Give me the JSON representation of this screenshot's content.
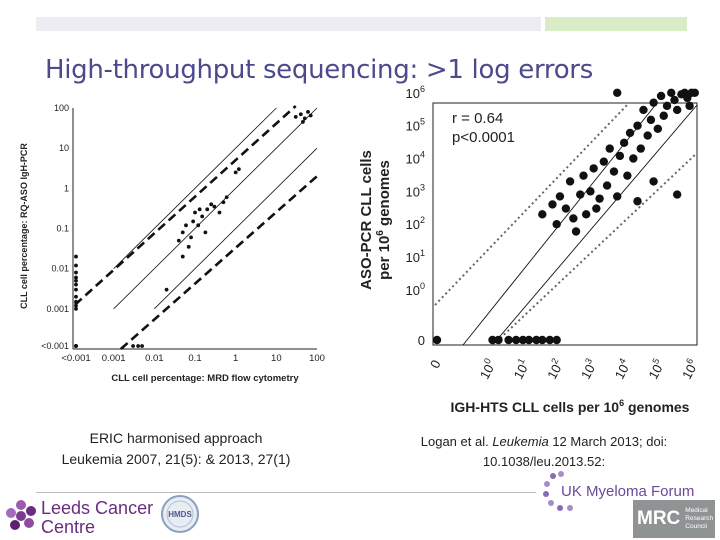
{
  "slide": {
    "title": "High-throughput sequencing: >1 log errors",
    "caption_left": [
      "ERIC harmonised approach",
      "Leukemia 2007, 21(5): & 2013, 27(1)"
    ],
    "caption_right": {
      "author": "Logan et al. ",
      "journal": "Leukemia",
      "date": " 12 March 2013; doi:",
      "doi": "10.1038/leu.2013.52:"
    }
  },
  "chart_data": [
    {
      "type": "scatter",
      "title": "",
      "xlabel": "CLL cell percentage: MRD flow cytometry",
      "ylabel": "CLL cell percentage: RQ-ASO IgH-PCR",
      "x_scale": "log",
      "y_scale": "log",
      "x_ticks": [
        "<0.001",
        "0.001",
        "0.01",
        "0.1",
        "1",
        "10",
        "100"
      ],
      "y_ticks": [
        "<0.001",
        "0.001",
        "0.01",
        "0.1",
        "1",
        "10",
        "100"
      ],
      "points": [
        [
          0.0005,
          0.012
        ],
        [
          0.0005,
          0.008
        ],
        [
          0.0005,
          0.005
        ],
        [
          0.0005,
          0.003
        ],
        [
          0.0005,
          0.002
        ],
        [
          0.0005,
          0.0015
        ],
        [
          0.0005,
          0.001
        ],
        [
          0.0005,
          0.0008
        ],
        [
          0.0005,
          0.0006
        ],
        [
          0.0005,
          0.02
        ],
        [
          0.0005,
          0.004
        ],
        [
          0.0005,
          0.0012
        ],
        [
          0.0004,
          0.0008
        ],
        [
          0.0004,
          0.006
        ],
        [
          0.0004,
          0.0004
        ],
        [
          0.003,
          0.0004
        ],
        [
          0.004,
          0.0004
        ],
        [
          0.005,
          0.0005
        ],
        [
          0.02,
          0.003
        ],
        [
          0.04,
          0.05
        ],
        [
          0.05,
          0.02
        ],
        [
          0.05,
          0.08
        ],
        [
          0.06,
          0.12
        ],
        [
          0.07,
          0.035
        ],
        [
          0.08,
          0.06
        ],
        [
          0.09,
          0.15
        ],
        [
          0.1,
          0.25
        ],
        [
          0.12,
          0.12
        ],
        [
          0.13,
          0.3
        ],
        [
          0.15,
          0.2
        ],
        [
          0.18,
          0.08
        ],
        [
          0.2,
          0.3
        ],
        [
          0.25,
          0.4
        ],
        [
          0.3,
          0.35
        ],
        [
          0.4,
          0.25
        ],
        [
          0.5,
          0.45
        ],
        [
          0.6,
          0.6
        ],
        [
          1,
          2.5
        ],
        [
          1.2,
          3
        ],
        [
          30,
          60
        ],
        [
          40,
          70
        ],
        [
          50,
          55
        ],
        [
          60,
          80
        ],
        [
          70,
          65
        ],
        [
          45,
          45
        ]
      ],
      "lines": [
        "identity",
        "+1 log",
        "-1 log"
      ]
    },
    {
      "type": "scatter",
      "title": "",
      "xlabel": "IGH-HTS CLL cells per 10^6 genomes",
      "ylabel": "ASO-PCR CLL cells per 10^6 genomes",
      "x_scale": "log",
      "y_scale": "log",
      "x_ticks": [
        "0",
        "10^0",
        "10^1",
        "10^2",
        "10^3",
        "10^4",
        "10^5",
        "10^6"
      ],
      "y_ticks": [
        "0",
        "10^0",
        "10^1",
        "10^2",
        "10^3",
        "10^4",
        "10^5",
        "10^6"
      ],
      "annotations": [
        "r = 0.64",
        "p<0.0001"
      ],
      "points": [
        [
          1,
          0
        ],
        [
          1.5,
          0
        ],
        [
          3,
          0
        ],
        [
          5,
          0
        ],
        [
          8,
          0
        ],
        [
          12,
          0
        ],
        [
          20,
          0
        ],
        [
          30,
          0
        ],
        [
          50,
          0
        ],
        [
          80,
          0
        ],
        [
          0,
          0
        ],
        [
          30,
          200
        ],
        [
          60,
          400
        ],
        [
          80,
          100
        ],
        [
          100,
          700
        ],
        [
          150,
          300
        ],
        [
          200,
          2000
        ],
        [
          250,
          150
        ],
        [
          300,
          60
        ],
        [
          400,
          800
        ],
        [
          500,
          3000
        ],
        [
          600,
          200
        ],
        [
          800,
          1000
        ],
        [
          1000,
          5000
        ],
        [
          1200,
          300
        ],
        [
          1500,
          600
        ],
        [
          2000,
          8000
        ],
        [
          2500,
          1500
        ],
        [
          3000,
          20000
        ],
        [
          4000,
          4000
        ],
        [
          5000,
          700
        ],
        [
          6000,
          12000
        ],
        [
          8000,
          30000
        ],
        [
          10000,
          3000
        ],
        [
          12000,
          60000
        ],
        [
          15000,
          10000
        ],
        [
          20000,
          100000
        ],
        [
          25000,
          20000
        ],
        [
          30000,
          300000
        ],
        [
          40000,
          50000
        ],
        [
          50000,
          150000
        ],
        [
          60000,
          500000
        ],
        [
          80000,
          80000
        ],
        [
          100000,
          800000
        ],
        [
          120000,
          200000
        ],
        [
          150000,
          400000
        ],
        [
          200000,
          1000000
        ],
        [
          250000,
          600000
        ],
        [
          300000,
          300000
        ],
        [
          400000,
          900000
        ],
        [
          500000,
          1000000
        ],
        [
          600000,
          700000
        ],
        [
          800000,
          1000000
        ],
        [
          1000000,
          1000000
        ],
        [
          700000,
          400000
        ],
        [
          300000,
          800
        ],
        [
          5000,
          1000000
        ],
        [
          20000,
          500
        ],
        [
          60000,
          2000
        ]
      ],
      "lines": [
        "identity",
        "+1 log (dotted)",
        "-1 log (dotted)"
      ]
    }
  ]
}
